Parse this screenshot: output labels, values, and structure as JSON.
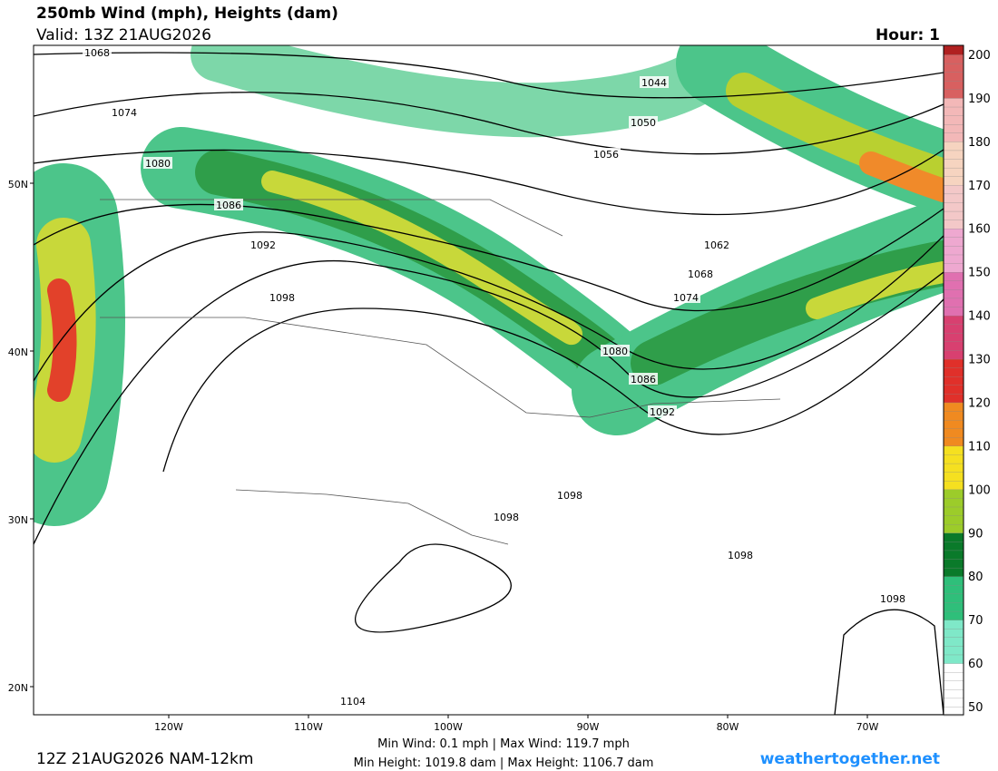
{
  "header": {
    "title": "250mb Wind (mph), Heights (dam)",
    "valid": "Valid: 13Z 21AUG2026",
    "hour": "Hour: 1"
  },
  "map": {
    "lat_labels": [
      "50N",
      "40N",
      "30N",
      "20N"
    ],
    "lon_labels": [
      "120W",
      "110W",
      "100W",
      "90W",
      "80W",
      "70W"
    ],
    "contour_labels": [
      "1068",
      "1074",
      "1080",
      "1086",
      "1092",
      "1098",
      "1044",
      "1050",
      "1056",
      "1062",
      "1068",
      "1074",
      "1080",
      "1086",
      "1092",
      "1098",
      "1098",
      "1098",
      "1098",
      "1104"
    ]
  },
  "colorbar": {
    "ticks": [
      "50",
      "60",
      "70",
      "80",
      "90",
      "100",
      "110",
      "120",
      "130",
      "140",
      "150",
      "160",
      "170",
      "180",
      "190",
      "200"
    ]
  },
  "footer": {
    "run": "12Z 21AUG2026 NAM-12km",
    "wind_stats": "Min Wind:   0.1 mph | Max Wind: 119.7 mph",
    "height_stats": "Min Height: 1019.8 dam | Max Height: 1106.7 dam",
    "site": "weathertogether.net"
  }
}
